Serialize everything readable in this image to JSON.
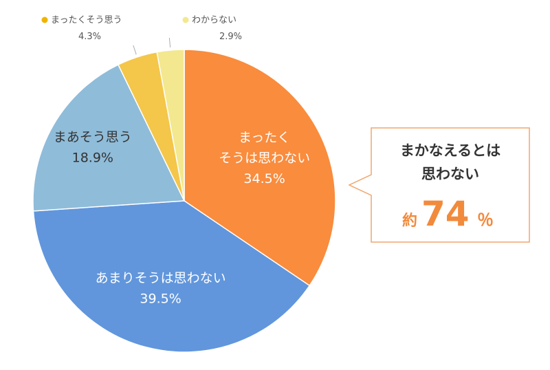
{
  "chart_data": {
    "type": "pie",
    "slices": [
      {
        "label_lines": [
          "まったく",
          "そうは思わない"
        ],
        "value": 34.5,
        "value_text": "34.5%",
        "color": "#f98c3d"
      },
      {
        "label_lines": [
          "あまりそうは思わない"
        ],
        "value": 39.5,
        "value_text": "39.5%",
        "color": "#6196dc"
      },
      {
        "label_lines": [
          "まあそう思う"
        ],
        "value": 18.9,
        "value_text": "18.9%",
        "color": "#8fbcd9"
      },
      {
        "label_lines": [
          "まったくそう思う"
        ],
        "value": 4.3,
        "value_text": "4.3%",
        "color": "#f4c649"
      },
      {
        "label_lines": [
          "わからない"
        ],
        "value": 2.9,
        "value_text": "2.9%",
        "color": "#f3e88f"
      }
    ],
    "callout": {
      "line1": "まかなえるとは",
      "line2": "思わない",
      "prefix": "約",
      "number": "74",
      "unit": "％",
      "accent": "#f28a3c",
      "border": "#f0a66e"
    },
    "small_dot_colors": [
      "#f0b400",
      "#f3e88f"
    ]
  }
}
